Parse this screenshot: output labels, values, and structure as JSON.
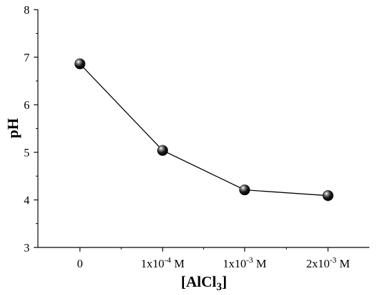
{
  "chart_data": {
    "type": "line",
    "title": "",
    "xlabel": "[AlCl3]",
    "xlabel_main": "[AlCl",
    "xlabel_sub": "3",
    "xlabel_end": "]",
    "ylabel": "pH",
    "categories": [
      "0",
      "1x10-4 M",
      "1x10-3 M",
      "2x10-3 M"
    ],
    "category_parts": [
      {
        "base": "0",
        "exp": "",
        "suffix": ""
      },
      {
        "base": "1x10",
        "exp": "-4",
        "suffix": " M"
      },
      {
        "base": "1x10",
        "exp": "-3",
        "suffix": " M"
      },
      {
        "base": "2x10",
        "exp": "-3",
        "suffix": " M"
      }
    ],
    "series": [
      {
        "values": [
          6.86,
          5.04,
          4.21,
          4.09
        ]
      }
    ],
    "ylim": [
      3,
      8
    ],
    "yticks": [
      3,
      4,
      5,
      6,
      7,
      8
    ],
    "grid": false,
    "colors": {
      "line": "#000000",
      "marker": "#000000",
      "axis": "#000000"
    }
  }
}
